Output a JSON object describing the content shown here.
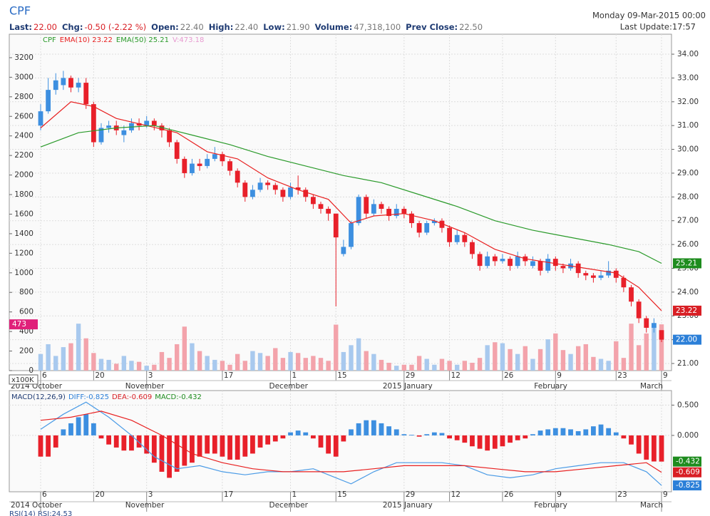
{
  "header": {
    "symbol": "CPF",
    "stats": [
      {
        "label": "Last:",
        "value": "22.00"
      },
      {
        "label": "Chg:",
        "value": "-0.50 (-2.22 %)"
      },
      {
        "label": "Open:",
        "value": "22.40"
      },
      {
        "label": "High:",
        "value": "22.40"
      },
      {
        "label": "Low:",
        "value": "21.90"
      },
      {
        "label": "Volume:",
        "value": "47,318,100"
      },
      {
        "label": "Prev Close:",
        "value": "22.50"
      }
    ],
    "date": "Monday 09-Mar-2015 00:00",
    "update": "Last Update:17:57",
    "rsi_label": "RSI(14) RSI:24.53"
  },
  "chart_data": [
    {
      "type": "candlestick",
      "legend_label": "CPF",
      "volume_label": "V:473.18",
      "volume_unit": "x100K",
      "up_color": "#3d8fe0",
      "down_color": "#e8202a",
      "volume_up_color": "#a8c9ee",
      "volume_down_color": "#f3a3ab",
      "grid": true,
      "ohlc": [
        [
          31.0,
          31.9,
          30.8,
          31.6
        ],
        [
          31.6,
          33.0,
          31.5,
          32.5
        ],
        [
          32.5,
          33.2,
          32.3,
          32.9
        ],
        [
          32.7,
          33.3,
          32.5,
          33.0
        ],
        [
          33.0,
          33.1,
          32.4,
          32.6
        ],
        [
          32.6,
          33.0,
          32.4,
          32.8
        ],
        [
          32.8,
          33.0,
          31.7,
          31.9
        ],
        [
          31.9,
          32.0,
          30.1,
          30.3
        ],
        [
          30.3,
          31.1,
          30.2,
          30.9
        ],
        [
          30.9,
          31.2,
          30.7,
          31.0
        ],
        [
          31.0,
          31.2,
          30.6,
          30.8
        ],
        [
          30.6,
          31.0,
          30.3,
          30.8
        ],
        [
          30.8,
          31.3,
          30.7,
          31.1
        ],
        [
          31.1,
          31.3,
          30.8,
          31.0
        ],
        [
          31.0,
          31.4,
          30.9,
          31.2
        ],
        [
          31.2,
          31.3,
          30.8,
          31.0
        ],
        [
          31.0,
          31.1,
          30.5,
          30.8
        ],
        [
          30.8,
          30.9,
          30.1,
          30.3
        ],
        [
          30.3,
          30.4,
          29.4,
          29.6
        ],
        [
          29.6,
          29.7,
          28.8,
          29.0
        ],
        [
          29.0,
          29.6,
          28.9,
          29.4
        ],
        [
          29.4,
          29.6,
          29.1,
          29.3
        ],
        [
          29.3,
          29.8,
          29.2,
          29.6
        ],
        [
          29.6,
          30.1,
          29.5,
          29.8
        ],
        [
          29.8,
          29.9,
          29.3,
          29.5
        ],
        [
          29.5,
          29.6,
          28.9,
          29.1
        ],
        [
          29.1,
          29.2,
          28.4,
          28.6
        ],
        [
          28.6,
          28.7,
          27.8,
          28.0
        ],
        [
          28.0,
          28.5,
          27.9,
          28.3
        ],
        [
          28.3,
          28.8,
          28.2,
          28.6
        ],
        [
          28.6,
          28.7,
          28.3,
          28.5
        ],
        [
          28.5,
          28.6,
          28.1,
          28.3
        ],
        [
          28.3,
          28.4,
          27.8,
          28.0
        ],
        [
          28.0,
          28.6,
          27.9,
          28.4
        ],
        [
          28.4,
          28.9,
          28.1,
          28.3
        ],
        [
          28.3,
          28.4,
          27.8,
          28.0
        ],
        [
          28.0,
          28.1,
          27.5,
          27.7
        ],
        [
          27.7,
          27.8,
          27.3,
          27.5
        ],
        [
          27.5,
          27.6,
          27.0,
          27.3
        ],
        [
          27.3,
          27.3,
          23.4,
          26.3
        ],
        [
          25.6,
          26.2,
          25.5,
          25.9
        ],
        [
          25.9,
          27.0,
          25.8,
          26.9
        ],
        [
          26.9,
          28.1,
          26.8,
          28.0
        ],
        [
          28.0,
          28.1,
          27.1,
          27.3
        ],
        [
          27.3,
          27.9,
          27.2,
          27.7
        ],
        [
          27.7,
          27.8,
          27.3,
          27.5
        ],
        [
          27.5,
          27.6,
          27.0,
          27.2
        ],
        [
          27.2,
          27.7,
          27.1,
          27.5
        ],
        [
          27.5,
          27.6,
          27.1,
          27.3
        ],
        [
          27.3,
          27.4,
          26.7,
          26.9
        ],
        [
          26.9,
          27.0,
          26.3,
          26.5
        ],
        [
          26.5,
          27.0,
          26.4,
          26.9
        ],
        [
          26.9,
          27.1,
          26.8,
          27.0
        ],
        [
          27.0,
          27.1,
          26.5,
          26.7
        ],
        [
          26.7,
          26.8,
          25.9,
          26.1
        ],
        [
          26.1,
          26.6,
          26.0,
          26.4
        ],
        [
          26.4,
          26.5,
          25.9,
          26.1
        ],
        [
          26.1,
          26.2,
          25.4,
          25.6
        ],
        [
          25.6,
          25.7,
          24.9,
          25.1
        ],
        [
          25.1,
          25.7,
          25.0,
          25.5
        ],
        [
          25.5,
          25.6,
          25.1,
          25.3
        ],
        [
          25.3,
          25.6,
          25.2,
          25.4
        ],
        [
          25.4,
          25.5,
          24.9,
          25.1
        ],
        [
          25.1,
          25.7,
          25.0,
          25.5
        ],
        [
          25.5,
          25.6,
          25.1,
          25.3
        ],
        [
          25.1,
          25.5,
          25.0,
          25.3
        ],
        [
          25.3,
          25.4,
          24.7,
          24.9
        ],
        [
          24.9,
          25.6,
          24.8,
          25.4
        ],
        [
          25.4,
          25.5,
          24.9,
          25.1
        ],
        [
          25.1,
          25.2,
          24.8,
          25.0
        ],
        [
          25.0,
          25.4,
          24.9,
          25.2
        ],
        [
          25.2,
          25.3,
          24.6,
          24.8
        ],
        [
          24.8,
          24.9,
          24.5,
          24.7
        ],
        [
          24.7,
          24.8,
          24.4,
          24.6
        ],
        [
          24.6,
          24.9,
          24.5,
          24.7
        ],
        [
          24.7,
          25.3,
          24.6,
          24.9
        ],
        [
          24.9,
          25.0,
          24.4,
          24.6
        ],
        [
          24.6,
          24.7,
          24.0,
          24.2
        ],
        [
          24.2,
          24.3,
          23.4,
          23.6
        ],
        [
          23.6,
          23.7,
          22.7,
          22.9
        ],
        [
          22.9,
          23.0,
          22.3,
          22.5
        ],
        [
          22.5,
          22.9,
          22.3,
          22.7
        ],
        [
          22.4,
          22.4,
          21.9,
          22.0
        ]
      ],
      "volume": [
        170,
        270,
        150,
        240,
        280,
        480,
        330,
        180,
        120,
        110,
        70,
        150,
        100,
        90,
        50,
        60,
        190,
        130,
        270,
        450,
        280,
        200,
        150,
        110,
        100,
        60,
        170,
        100,
        200,
        180,
        150,
        230,
        130,
        190,
        180,
        130,
        150,
        130,
        100,
        470,
        190,
        260,
        330,
        200,
        170,
        110,
        80,
        50,
        60,
        60,
        150,
        120,
        60,
        120,
        100,
        60,
        100,
        80,
        130,
        260,
        290,
        280,
        220,
        170,
        250,
        120,
        220,
        320,
        380,
        210,
        170,
        250,
        270,
        140,
        120,
        100,
        300,
        130,
        480,
        260,
        380,
        460,
        473
      ],
      "lines": [
        {
          "name": "EMA(10) 23.22",
          "color": "#e82020",
          "x": [
            0,
            4,
            7,
            10,
            14,
            18,
            22,
            26,
            30,
            34,
            38,
            41,
            44,
            48,
            52,
            56,
            60,
            64,
            68,
            72,
            76,
            79,
            82
          ],
          "values": [
            30.9,
            32.0,
            31.8,
            31.3,
            31.0,
            30.7,
            29.9,
            29.6,
            28.8,
            28.3,
            27.9,
            26.9,
            27.2,
            27.3,
            27.0,
            26.5,
            25.8,
            25.4,
            25.2,
            25.0,
            24.8,
            24.2,
            23.22
          ]
        },
        {
          "name": "EMA(50) 25.21",
          "color": "#2a9a2a",
          "x": [
            0,
            5,
            10,
            15,
            20,
            25,
            30,
            35,
            40,
            45,
            50,
            55,
            60,
            65,
            70,
            75,
            79,
            82
          ],
          "values": [
            30.1,
            30.7,
            30.9,
            31.0,
            30.6,
            30.2,
            29.7,
            29.3,
            28.9,
            28.6,
            28.1,
            27.6,
            27.0,
            26.6,
            26.3,
            26.0,
            25.7,
            25.21
          ]
        }
      ],
      "ylim": [
        20.7,
        34.84
      ],
      "yticks": [
        {
          "value": 21,
          "label": "21.00"
        },
        {
          "value": 22,
          "label": "22.00"
        },
        {
          "value": 23,
          "label": "23.00"
        },
        {
          "value": 24,
          "label": "24.00"
        },
        {
          "value": 25,
          "label": "25.00"
        },
        {
          "value": 26,
          "label": "26.00"
        },
        {
          "value": 27,
          "label": "27.00"
        },
        {
          "value": 28,
          "label": "28.00"
        },
        {
          "value": 29,
          "label": "29.00"
        },
        {
          "value": 30,
          "label": "30.00"
        },
        {
          "value": 31,
          "label": "31.00"
        },
        {
          "value": 32,
          "label": "32.00"
        },
        {
          "value": 33,
          "label": "33.00"
        },
        {
          "value": 34,
          "label": "34.00"
        }
      ],
      "vlim": [
        0,
        3440
      ],
      "vticks": [
        0,
        200,
        400,
        600,
        800,
        1000,
        1200,
        1400,
        1600,
        1800,
        2000,
        2200,
        2400,
        2600,
        2800,
        3000,
        3200
      ],
      "xticks": [
        {
          "value": 0,
          "label": "6"
        },
        {
          "value": 7,
          "label": "20"
        },
        {
          "value": 14,
          "label": "3"
        },
        {
          "value": 24,
          "label": "17"
        },
        {
          "value": 33,
          "label": "1"
        },
        {
          "value": 39,
          "label": "15"
        },
        {
          "value": 48,
          "label": "29"
        },
        {
          "value": 54,
          "label": "12"
        },
        {
          "value": 61,
          "label": "26"
        },
        {
          "value": 68,
          "label": "9"
        },
        {
          "value": 76,
          "label": "23"
        },
        {
          "value": 82,
          "label": "9"
        }
      ],
      "months": [
        {
          "value": 0,
          "label": "2014 October"
        },
        {
          "value": 14,
          "label": "November"
        },
        {
          "value": 33,
          "label": "December"
        },
        {
          "value": 48,
          "label": "2015 January"
        },
        {
          "value": 68,
          "label": "February"
        },
        {
          "value": 82,
          "label": "March"
        }
      ],
      "last_labels": [
        {
          "value": 25.21,
          "label": "25.21",
          "color": "#1e8c1e"
        },
        {
          "value": 23.22,
          "label": "23.22",
          "color": "#d81e24"
        },
        {
          "value": 22,
          "label": "22.00",
          "color": "#2b7fd8"
        }
      ],
      "volume_last": {
        "value": 473,
        "label": "473",
        "color": "#e0207a"
      }
    },
    {
      "type": "macd",
      "legend": [
        "MACD(12,26,9)",
        "DIFF:-0.825",
        "DEA:-0.609",
        "MACD:-0.432"
      ],
      "up_color": "#3d8fe0",
      "down_color": "#e8202a",
      "histogram": [
        -0.35,
        -0.35,
        -0.2,
        0.1,
        0.2,
        0.3,
        0.35,
        0.2,
        -0.05,
        -0.15,
        -0.2,
        -0.25,
        -0.25,
        -0.2,
        -0.3,
        -0.45,
        -0.6,
        -0.7,
        -0.6,
        -0.5,
        -0.45,
        -0.35,
        -0.3,
        -0.3,
        -0.35,
        -0.4,
        -0.4,
        -0.35,
        -0.3,
        -0.2,
        -0.15,
        -0.1,
        -0.05,
        0.05,
        0.08,
        0.05,
        -0.05,
        -0.2,
        -0.3,
        -0.35,
        -0.1,
        0.1,
        0.2,
        0.25,
        0.25,
        0.2,
        0.15,
        0.1,
        0.02,
        0.01,
        -0.02,
        0.02,
        0.05,
        0.04,
        -0.05,
        -0.08,
        -0.12,
        -0.18,
        -0.22,
        -0.25,
        -0.22,
        -0.18,
        -0.12,
        -0.08,
        -0.05,
        0.02,
        0.08,
        0.1,
        0.12,
        0.12,
        0.1,
        0.07,
        0.1,
        0.15,
        0.18,
        0.12,
        0.05,
        -0.05,
        -0.15,
        -0.3,
        -0.4,
        -0.43,
        -0.432
      ],
      "lines": [
        {
          "name": "DIFF",
          "color": "#4a9be6",
          "x": [
            0,
            3,
            6,
            9,
            12,
            15,
            18,
            21,
            24,
            27,
            30,
            33,
            36,
            39,
            41,
            44,
            47,
            50,
            53,
            56,
            59,
            62,
            65,
            68,
            71,
            74,
            77,
            80,
            82
          ],
          "values": [
            0.1,
            0.35,
            0.55,
            0.3,
            0.0,
            -0.35,
            -0.55,
            -0.5,
            -0.6,
            -0.65,
            -0.6,
            -0.6,
            -0.55,
            -0.7,
            -0.8,
            -0.6,
            -0.45,
            -0.45,
            -0.45,
            -0.5,
            -0.65,
            -0.7,
            -0.65,
            -0.55,
            -0.5,
            -0.45,
            -0.45,
            -0.6,
            -0.825
          ]
        },
        {
          "name": "DEA",
          "color": "#e82020",
          "x": [
            0,
            4,
            8,
            12,
            16,
            20,
            24,
            28,
            32,
            36,
            40,
            44,
            48,
            52,
            56,
            60,
            64,
            68,
            72,
            76,
            80,
            82
          ],
          "values": [
            0.25,
            0.3,
            0.4,
            0.25,
            0.0,
            -0.3,
            -0.45,
            -0.55,
            -0.6,
            -0.6,
            -0.6,
            -0.55,
            -0.5,
            -0.5,
            -0.5,
            -0.55,
            -0.6,
            -0.6,
            -0.55,
            -0.5,
            -0.45,
            -0.609
          ]
        }
      ],
      "ylim": [
        -0.93,
        0.74
      ],
      "yticks": [
        {
          "value": 0.5,
          "label": "0.500"
        },
        {
          "value": 0,
          "label": "0.000"
        }
      ],
      "last_labels": [
        {
          "value": -0.432,
          "label": "-0.432",
          "color": "#1e8c1e"
        },
        {
          "value": -0.609,
          "label": "-0.609",
          "color": "#d81e24"
        },
        {
          "value": -0.825,
          "label": "-0.825",
          "color": "#2b7fd8"
        }
      ]
    }
  ]
}
